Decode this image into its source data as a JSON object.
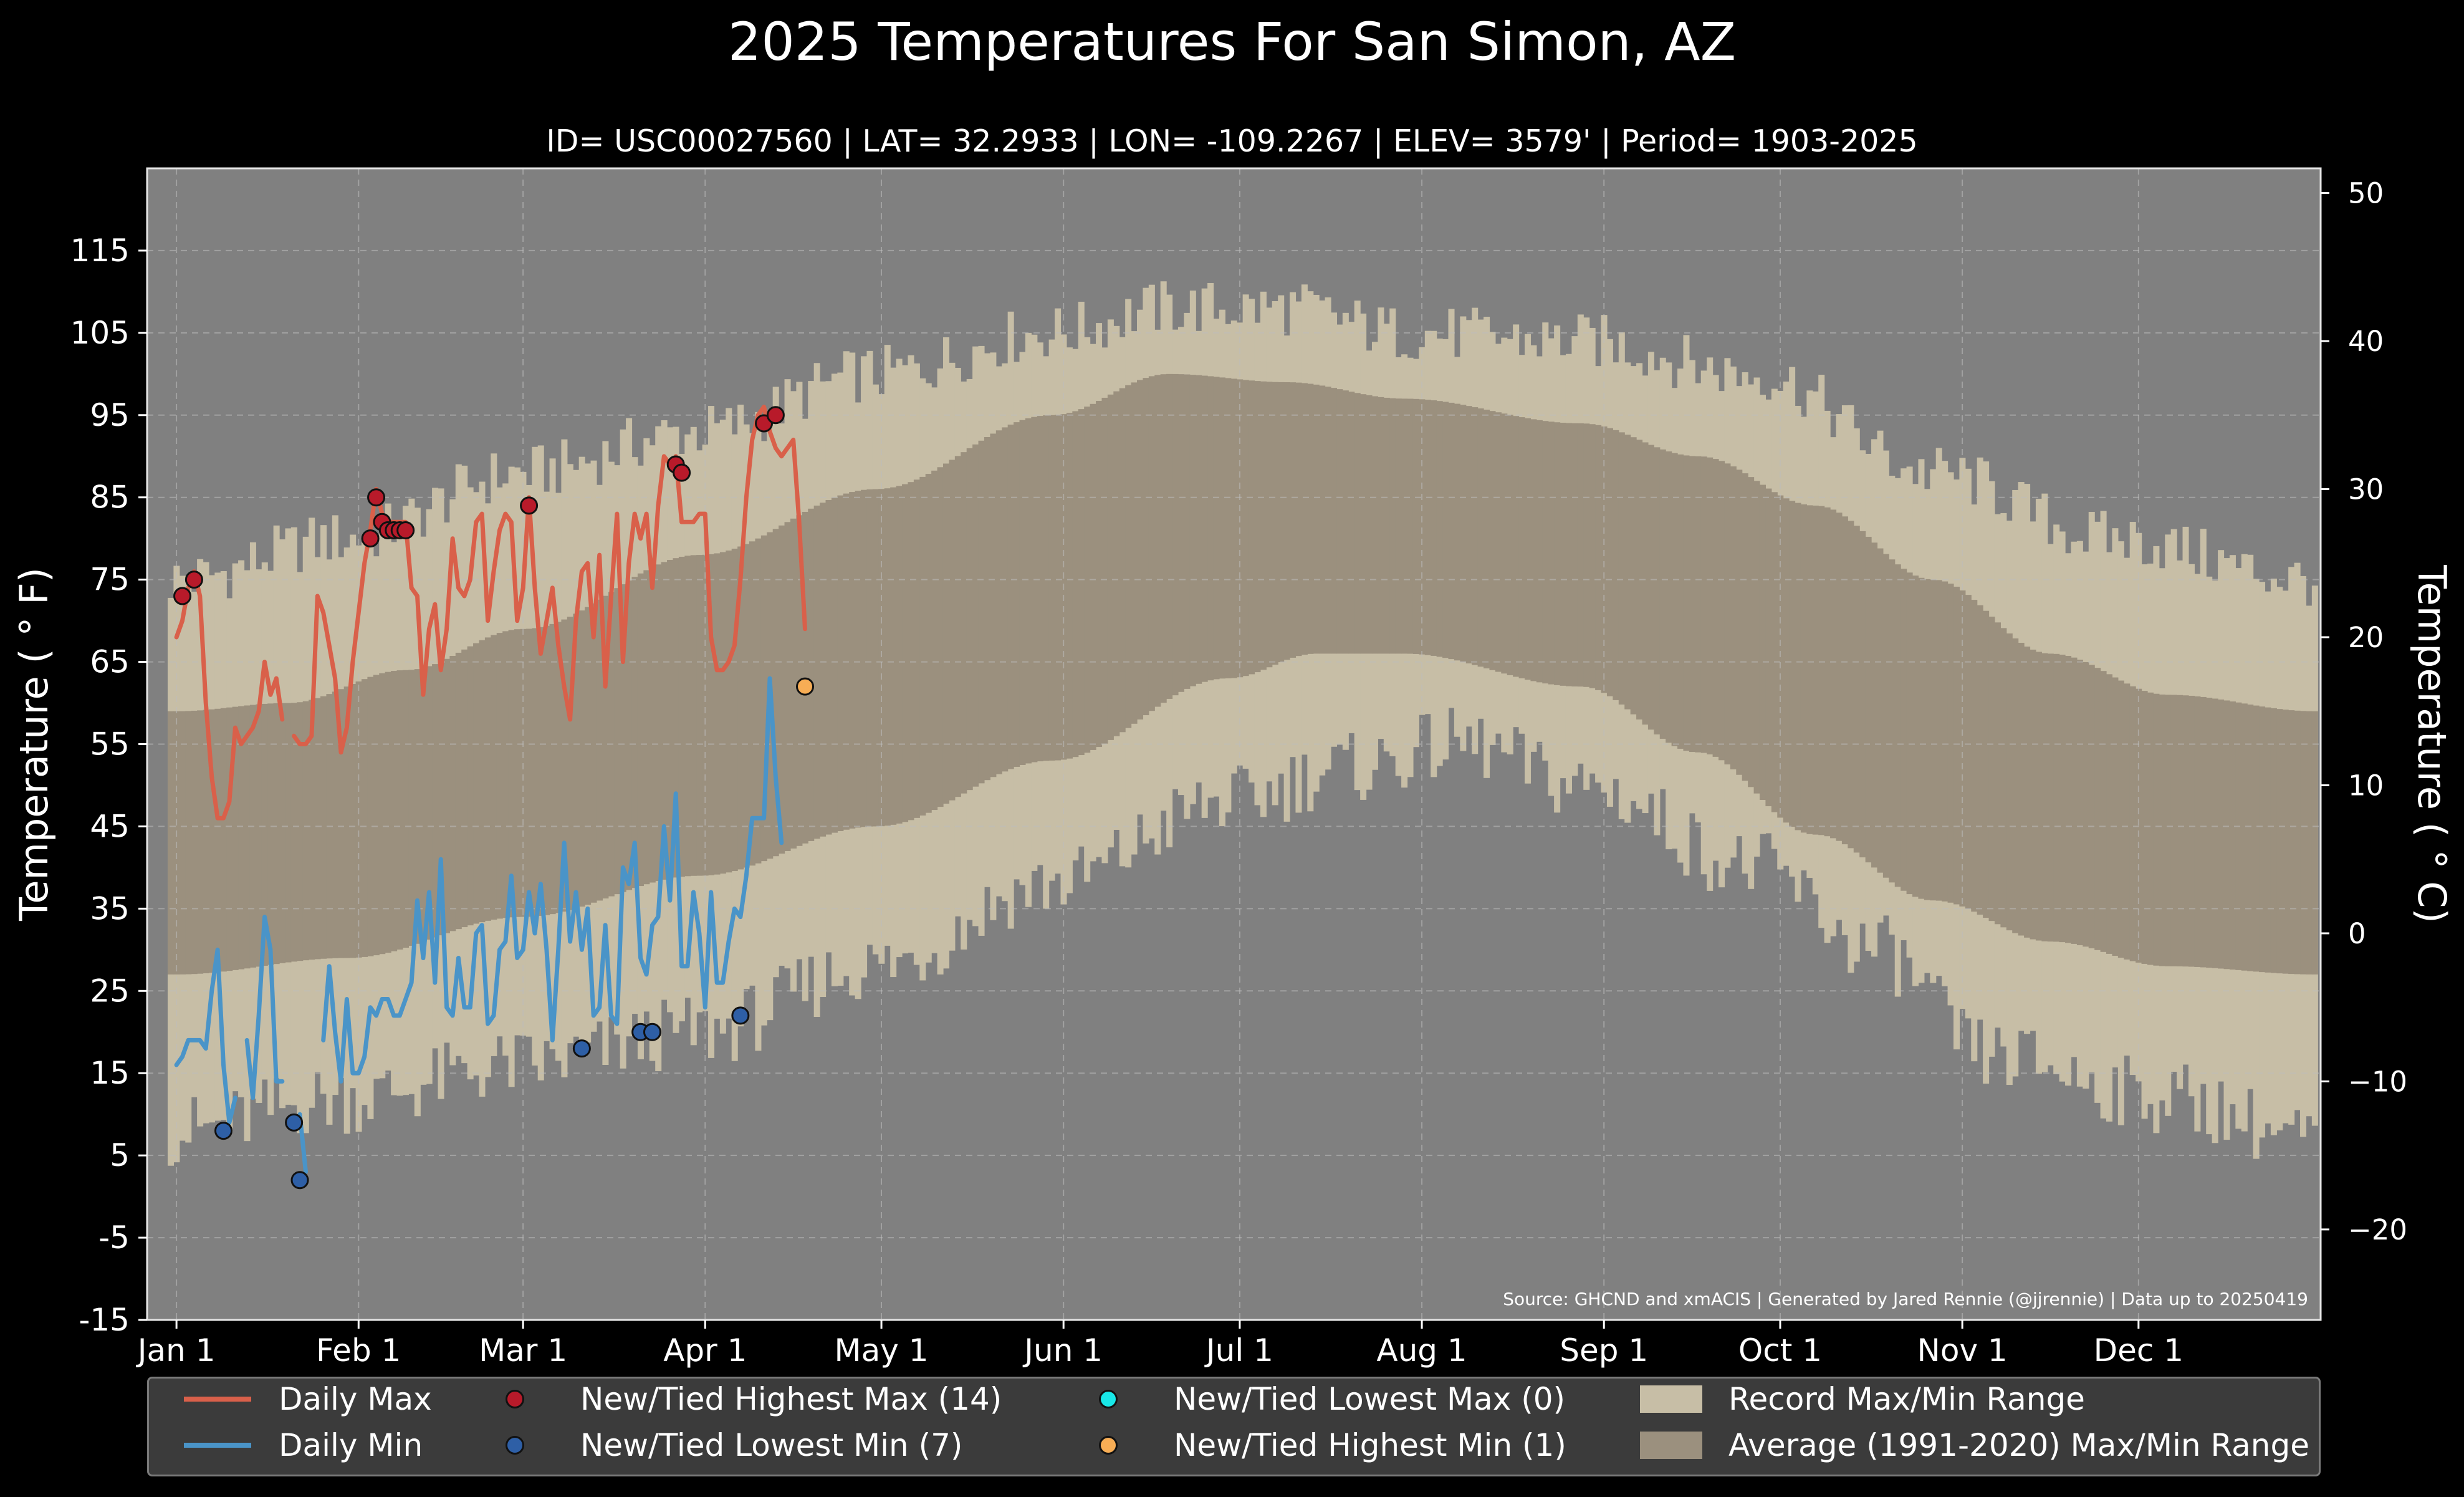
{
  "chart_data": {
    "type": "line",
    "title": "2025 Temperatures For San Simon, AZ",
    "subtitle": "ID= USC00027560 | LAT= 32.2933 | LON= -109.2267 | ELEV= 3579' | Period= 1903-2025",
    "ylabel_left": "Temperature ( ° F)",
    "ylabel_right": "Temperature ( ° C)",
    "source": "Source: GHCND and xmACIS | Generated by Jared Rennie (@jjrennie) | Data up to 20250419",
    "x_ticks": [
      "Jan 1",
      "Feb 1",
      "Mar 1",
      "Apr 1",
      "May 1",
      "Jun 1",
      "Jul 1",
      "Aug 1",
      "Sep 1",
      "Oct 1",
      "Nov 1",
      "Dec 1"
    ],
    "x_tick_days": [
      1,
      32,
      60,
      91,
      121,
      152,
      182,
      213,
      244,
      274,
      305,
      335
    ],
    "xlim": [
      -4,
      366
    ],
    "y_ticks_f": [
      "115",
      "105",
      "95",
      "85",
      "75",
      "65",
      "55",
      "45",
      "35",
      "25",
      "15",
      "5",
      "-5",
      "-15"
    ],
    "ylim_f": [
      -15,
      125
    ],
    "y_ticks_c": [
      "50",
      "40",
      "30",
      "20",
      "10",
      "0",
      "−10",
      "−20"
    ],
    "grid": true,
    "colors": {
      "background": "#000000",
      "plot_bg": "#808080",
      "record_range": "#c7bea6",
      "average_range": "#9b907e",
      "daily_max": "#d9604a",
      "daily_min": "#4a94c8",
      "new_high_max": "#b81a2a",
      "new_low_min": "#2e5fa6",
      "new_low_max": "#18e8e8",
      "new_high_min": "#f7ad55"
    },
    "record_max_anchors": {
      "days": [
        1,
        30,
        60,
        90,
        120,
        150,
        170,
        190,
        210,
        240,
        270,
        300,
        330,
        365
      ],
      "values": [
        75,
        80,
        88,
        93,
        100,
        105,
        108,
        108,
        105,
        104,
        100,
        88,
        80,
        75
      ]
    },
    "record_min_anchors": {
      "days": [
        1,
        30,
        60,
        90,
        120,
        150,
        180,
        200,
        220,
        240,
        270,
        290,
        310,
        340,
        365
      ],
      "values": [
        8,
        12,
        16,
        20,
        28,
        38,
        48,
        52,
        55,
        50,
        40,
        30,
        17,
        12,
        7
      ]
    },
    "average_max_anchors": {
      "days": [
        1,
        20,
        40,
        60,
        90,
        120,
        150,
        170,
        190,
        210,
        240,
        260,
        280,
        300,
        320,
        340,
        365
      ],
      "values": [
        59,
        60,
        64,
        69,
        78,
        86,
        95,
        100,
        99,
        97,
        94,
        90,
        84,
        75,
        66,
        61,
        59
      ]
    },
    "average_min_anchors": {
      "days": [
        1,
        30,
        60,
        90,
        120,
        150,
        180,
        195,
        210,
        240,
        260,
        280,
        300,
        320,
        340,
        365
      ],
      "values": [
        27,
        29,
        34,
        39,
        45,
        53,
        63,
        66,
        66,
        62,
        54,
        44,
        36,
        31,
        28,
        27
      ]
    },
    "series": [
      {
        "name": "Daily Max",
        "values": [
          68,
          70,
          74,
          76,
          73,
          60,
          51,
          46,
          46,
          48,
          57,
          55,
          56,
          57,
          59,
          65,
          61,
          63,
          58,
          null,
          56,
          55,
          55,
          56,
          73,
          71,
          67,
          63,
          54,
          57,
          65,
          71,
          77,
          81,
          86,
          83,
          82,
          82,
          82,
          82,
          74,
          73,
          61,
          69,
          72,
          64,
          69,
          80,
          74,
          73,
          75,
          82,
          83,
          70,
          76,
          81,
          83,
          82,
          70,
          74,
          85,
          74,
          66,
          70,
          74,
          67,
          62,
          58,
          70,
          76,
          77,
          68,
          78,
          62,
          73,
          83,
          65,
          77,
          83,
          80,
          83,
          74,
          84,
          90,
          89,
          90,
          82,
          82,
          82,
          83,
          83,
          68,
          64,
          64,
          65,
          67,
          75,
          85,
          92,
          95,
          96,
          93,
          91,
          90,
          91,
          92,
          82,
          69
        ],
        "x_start": 0
      },
      {
        "name": "Daily Min",
        "values": [
          16,
          17,
          19,
          19,
          19,
          18,
          25,
          30,
          16,
          9,
          12,
          null,
          19,
          12,
          22,
          34,
          30,
          14,
          14,
          null,
          null,
          10,
          3,
          null,
          null,
          19,
          28,
          20,
          14,
          24,
          15,
          15,
          17,
          23,
          22,
          24,
          24,
          22,
          22,
          24,
          26,
          36,
          29,
          37,
          26,
          41,
          23,
          22,
          29,
          23,
          23,
          32,
          33,
          21,
          22,
          30,
          31,
          39,
          29,
          30,
          37,
          32,
          38,
          30,
          19,
          30,
          43,
          31,
          37,
          30,
          35,
          22,
          23,
          33,
          22,
          21,
          40,
          38,
          43,
          29,
          27,
          33,
          34,
          45,
          36,
          49,
          28,
          28,
          37,
          32,
          23,
          37,
          26,
          26,
          31,
          35,
          34,
          39,
          46,
          46,
          46,
          63,
          51,
          43
        ],
        "x_start": 0
      }
    ],
    "record_points": [
      {
        "type": "new_high_max",
        "days": [
          2,
          4,
          35,
          36,
          37,
          38,
          39,
          40,
          34,
          61,
          86,
          87,
          101,
          103
        ],
        "values": [
          73,
          75,
          85,
          82,
          81,
          81,
          81,
          81,
          80,
          84,
          89,
          88,
          94,
          95
        ]
      },
      {
        "type": "new_low_min",
        "days": [
          9,
          21,
          22,
          70,
          80,
          82,
          97
        ],
        "values": [
          8,
          9,
          2,
          18,
          20,
          20,
          22
        ]
      },
      {
        "type": "new_high_min",
        "days": [
          108
        ],
        "values": [
          62
        ]
      }
    ]
  },
  "legend": {
    "daily_max": "Daily Max",
    "daily_min": "Daily Min",
    "new_high_max": "New/Tied Highest Max (14)",
    "new_low_min": "New/Tied Lowest Min (7)",
    "new_low_max": "New/Tied Lowest Max (0)",
    "new_high_min": "New/Tied Highest Min (1)",
    "record_range": "Record Max/Min Range",
    "average_range": "Average (1991-2020) Max/Min Range"
  }
}
